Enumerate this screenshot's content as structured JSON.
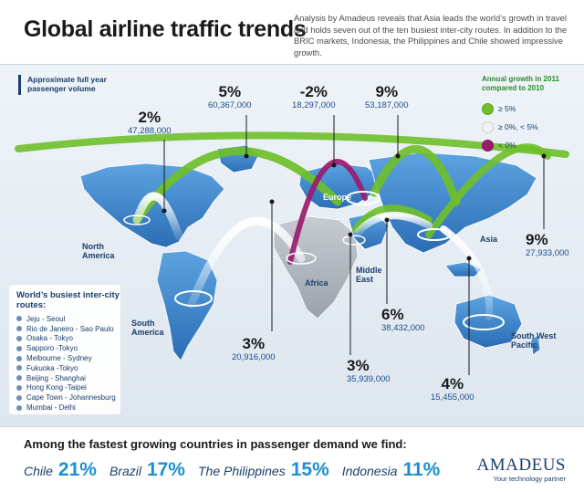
{
  "header": {
    "title": "Global airline traffic trends",
    "intro": "Analysis by Amadeus reveals that Asia leads the world’s growth in travel and holds seven out of the ten busiest inter-city routes. In addition to the BRIC markets, Indonesia, the Philippines and Chile showed impressive growth."
  },
  "volume_key": {
    "label": "Approximate full year passenger volume"
  },
  "legend": {
    "title": "Annual growth in 2011 compared to 2010",
    "items": [
      {
        "label": "≥ 5%",
        "color": "#6fbf2a"
      },
      {
        "label": "≥ 0%, < 5%",
        "color": "#f2f2f2"
      },
      {
        "label": "< 0%",
        "color": "#9b1b6e"
      }
    ]
  },
  "stats": {
    "north_america": {
      "pct": "2%",
      "value": "47,288,000"
    },
    "north_atlantic": {
      "pct": "5%",
      "value": "60,367,000"
    },
    "europe_africa": {
      "pct": "-2%",
      "value": "18,297,000"
    },
    "europe_asia": {
      "pct": "9%",
      "value": "53,187,000"
    },
    "asia_pacific": {
      "pct": "9%",
      "value": "27,933,000"
    },
    "middle_east": {
      "pct": "6%",
      "value": "38,432,000"
    },
    "south_atlantic": {
      "pct": "3%",
      "value": "20,916,000"
    },
    "africa_asia": {
      "pct": "3%",
      "value": "35,939,000"
    },
    "south_west_pacific": {
      "pct": "4%",
      "value": "15,455,000"
    }
  },
  "regions": {
    "north_america": "North America",
    "south_america": "South America",
    "europe": "Europe",
    "africa": "Africa",
    "middle_east": "Middle East",
    "asia": "Asia",
    "south_west_pacific": "South West Pacific"
  },
  "routes": {
    "title": "World’s busiest inter-city routes:",
    "items": [
      "Jeju - Seoul",
      "Rio de Janeiro - Sao Paulo",
      "Osaka - Tokyo",
      "Sapporo -Tokyo",
      "Melbourne - Sydney",
      "Fukuoka -Tokyo",
      "Beijing - Shanghai",
      "Hong Kong -Taipei",
      "Cape Town - Johannesburg",
      "Mumbai - Delhi"
    ]
  },
  "footer": {
    "question": "Among the fastest growing countries in passenger demand we find:",
    "countries": [
      {
        "name": "Chile",
        "value": "21%"
      },
      {
        "name": "Brazil",
        "value": "17%"
      },
      {
        "name": "The Philippines",
        "value": "15%"
      },
      {
        "name": "Indonesia",
        "value": "11%"
      }
    ]
  },
  "brand": {
    "name": "AMADEUS",
    "tagline": "Your technology partner"
  }
}
